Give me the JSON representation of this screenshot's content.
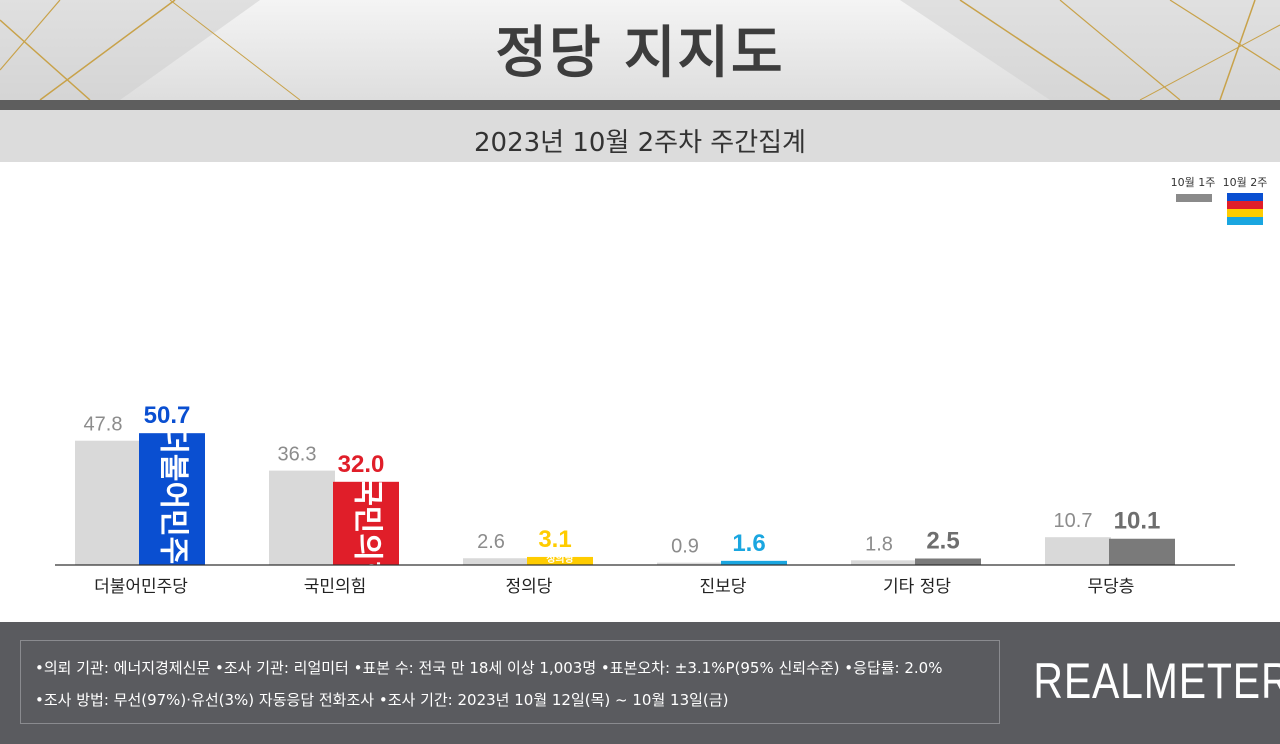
{
  "title": "정당 지지도",
  "subtitle": "2023년 10월 2주차 주간집계",
  "legend": {
    "prev": "10월 1주",
    "curr": "10월 2주"
  },
  "colors": {
    "prev_bar": "#d9d9d9",
    "prev_value_text": "#8c8c8c",
    "party_colors": [
      "#0a4fd1",
      "#e01e29",
      "#ffcc00",
      "#1aa6e0",
      "#7a7a7a",
      "#7a7a7a"
    ],
    "legend_curr_stripes": [
      "#0a4fd1",
      "#e01e29",
      "#ffcc00",
      "#1aa6e0"
    ],
    "footer_bg": "#5a5b5f"
  },
  "chart_data": {
    "type": "bar",
    "categories": [
      "더불어민주당",
      "국민의힘",
      "정의당",
      "진보당",
      "기타 정당",
      "무당층"
    ],
    "series": [
      {
        "name": "10월 1주",
        "values": [
          47.8,
          36.3,
          2.6,
          0.9,
          1.8,
          10.7
        ]
      },
      {
        "name": "10월 2주",
        "values": [
          50.7,
          32.0,
          3.1,
          1.6,
          2.5,
          10.1
        ]
      }
    ],
    "value_labels_prev": [
      "47.8",
      "36.3",
      "2.6",
      "0.9",
      "1.8",
      "10.7"
    ],
    "value_labels_curr": [
      "50.7",
      "32.0",
      "3.1",
      "1.6",
      "2.5",
      "10.1"
    ],
    "bar_logo_labels": [
      "더불어민주당",
      "국민의힘",
      "정의당",
      "",
      "",
      ""
    ],
    "ylim": [
      0,
      55
    ],
    "grid": false,
    "legend_position": "top-right"
  },
  "notes": {
    "line1": "•의뢰 기관: 에너지경제신문  •조사 기관: 리얼미터 •표본 수: 전국 만 18세 이상 1,003명 •표본오차: ±3.1%P(95% 신뢰수준) •응답률: 2.0%",
    "line2": "•조사 방법: 무선(97%)·유선(3%) 자동응답 전화조사 •조사 기간: 2023년 10월 12일(목) ~ 10월 13일(금)"
  },
  "brand": "REALMETER"
}
